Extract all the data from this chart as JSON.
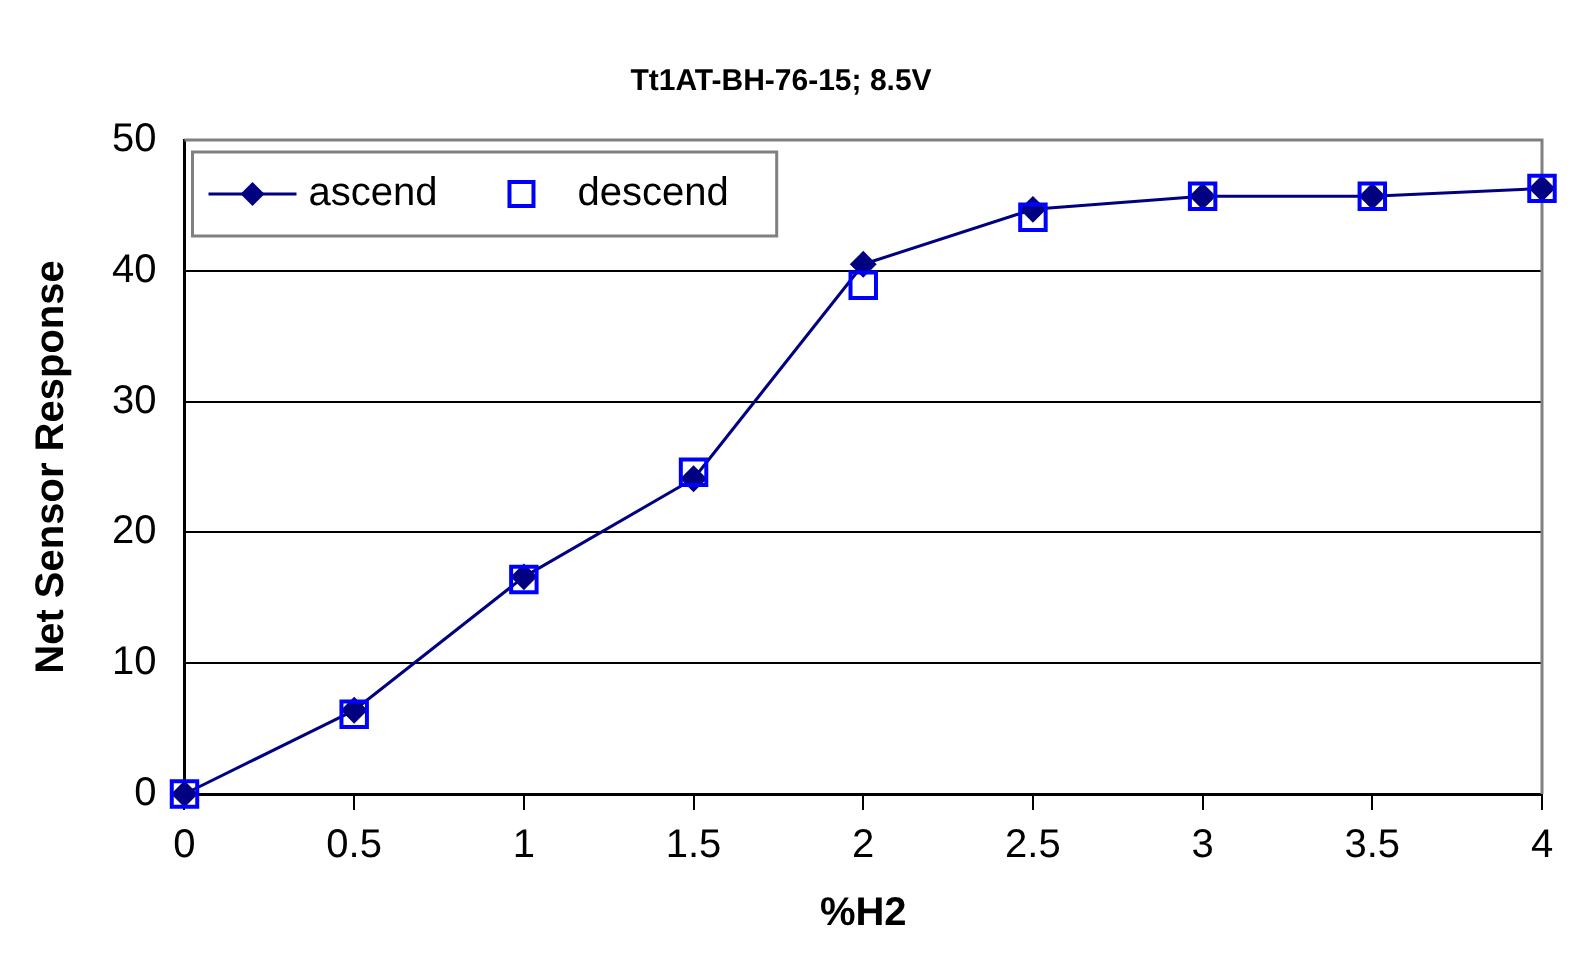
{
  "chart_data": {
    "type": "line",
    "title": "Tt1AT-BH-76-15; 8.5V",
    "xlabel": "%H2",
    "ylabel": "Net Sensor Response",
    "x": [
      0,
      0.5,
      1,
      1.5,
      2,
      2.5,
      3,
      3.5,
      4
    ],
    "series": [
      {
        "name": "ascend",
        "type": "line",
        "color": "#000080",
        "marker": "diamond",
        "values": [
          0,
          6.4,
          16.6,
          24.1,
          40.5,
          44.7,
          45.7,
          45.7,
          46.3
        ]
      },
      {
        "name": "descend",
        "type": "scatter",
        "color": "#0000ff",
        "marker": "square",
        "values": [
          0,
          6.1,
          16.4,
          24.6,
          38.9,
          44.1,
          45.7,
          45.7,
          46.3
        ]
      }
    ],
    "xlim": [
      0,
      4
    ],
    "xticks": [
      0,
      0.5,
      1,
      1.5,
      2,
      2.5,
      3,
      3.5,
      4
    ],
    "ylim": [
      0,
      50
    ],
    "yticks": [
      0,
      10,
      20,
      30,
      40,
      50
    ],
    "grid": "y",
    "legend": "top left",
    "line_style": "solid"
  }
}
